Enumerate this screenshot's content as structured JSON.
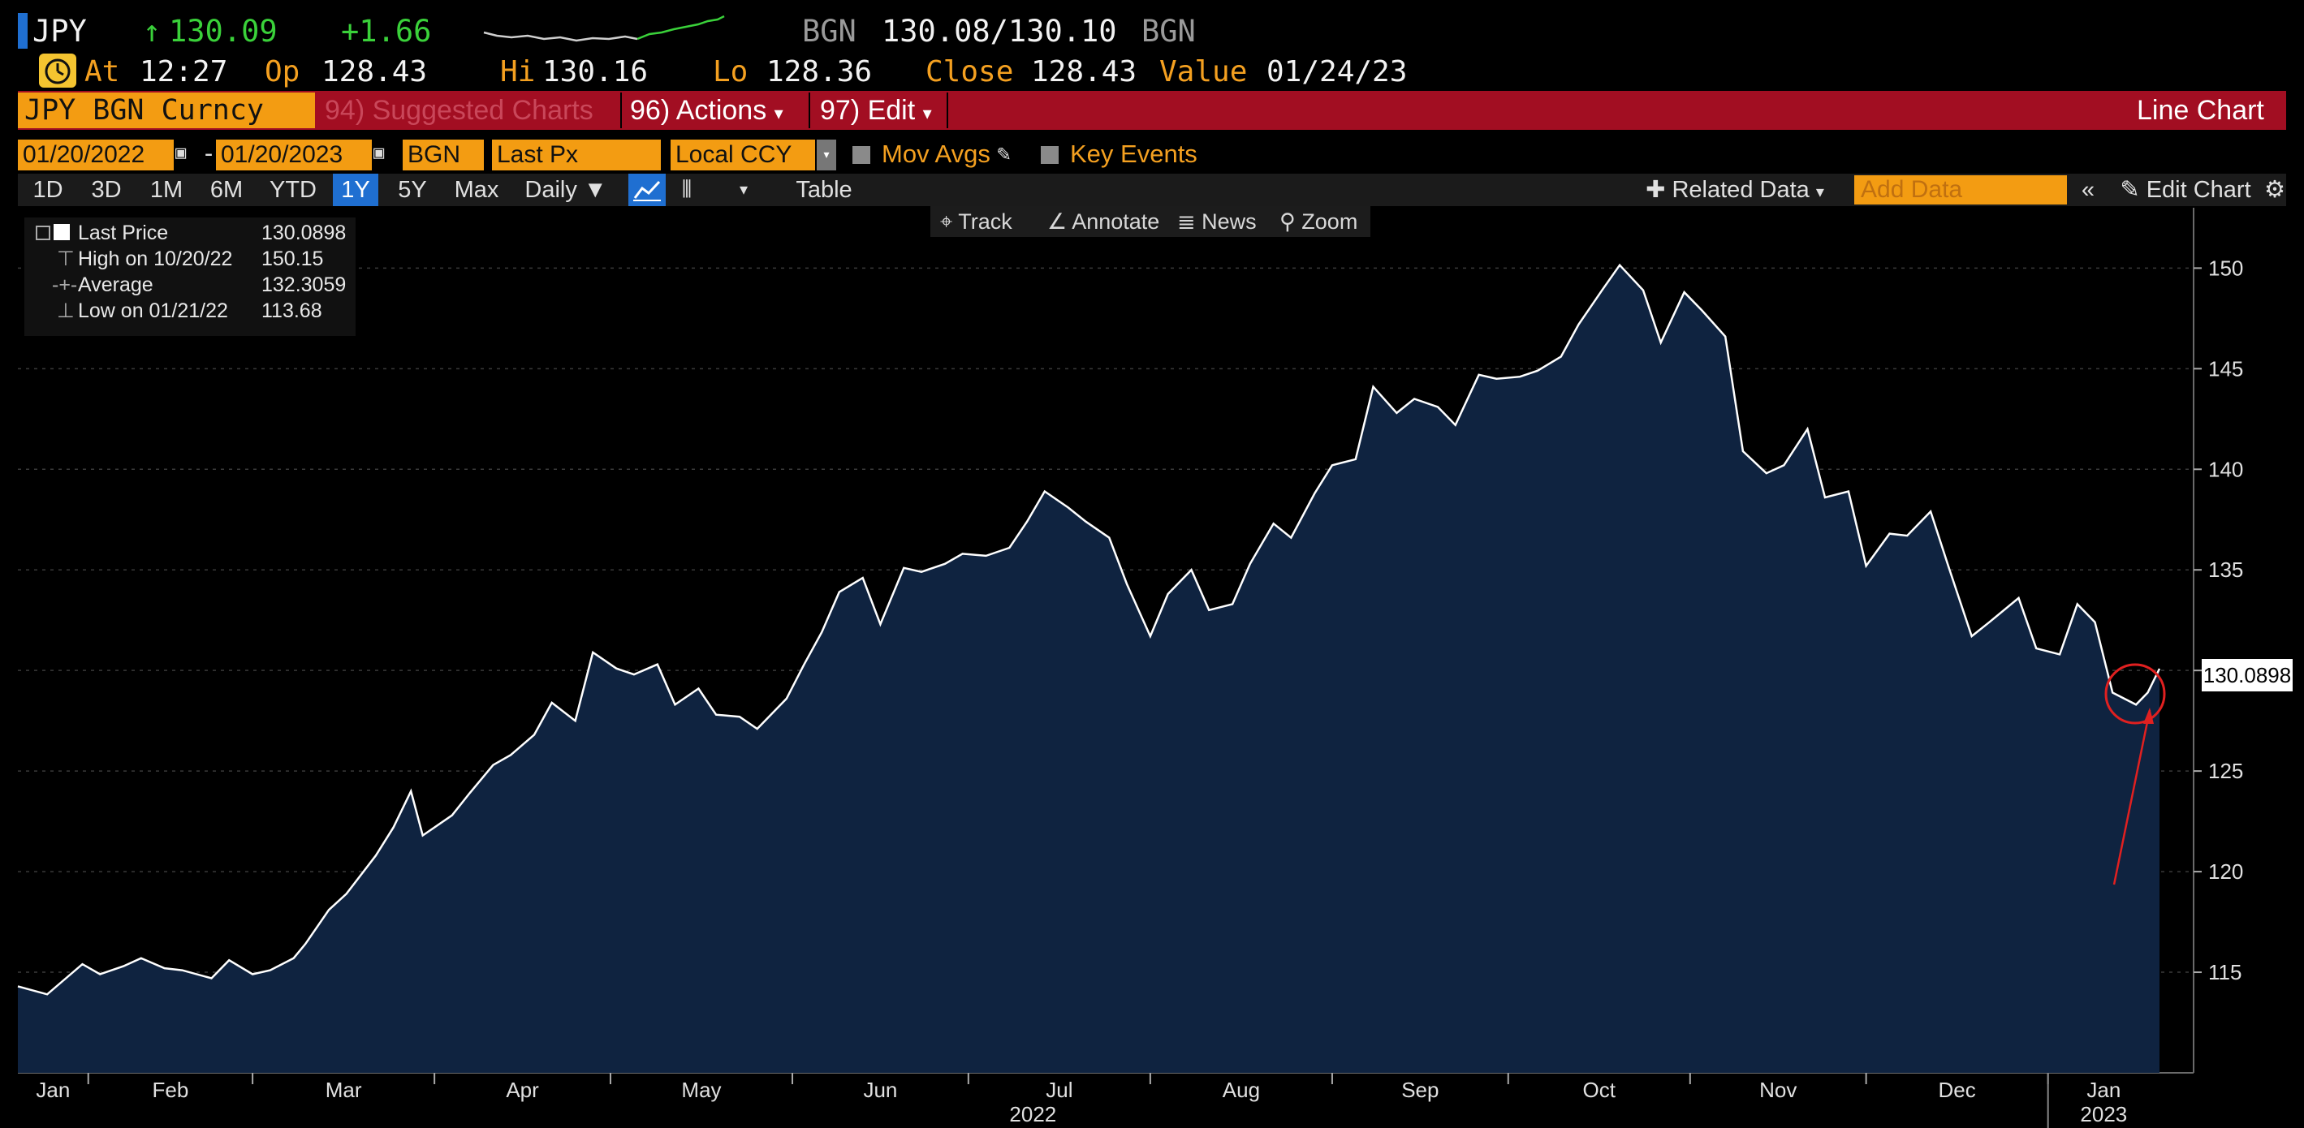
{
  "header": {
    "ticker": "JPY",
    "price": "130.09",
    "change": "+1.66",
    "source_label": "BGN",
    "bid_ask": "130.08/130.10",
    "source_label2": "BGN",
    "at_label": "At",
    "time": "12:27",
    "open_label": "Op",
    "open": "128.43",
    "high_label": "Hi",
    "high": "130.16",
    "low_label": "Lo",
    "low": "128.36",
    "close_label": "Close",
    "close": "128.43",
    "value_label": "Value",
    "value_date": "01/24/23"
  },
  "menubar": {
    "security": "JPY BGN Curncy",
    "suggested": "94) Suggested Charts",
    "actions": "96) Actions",
    "edit": "97) Edit",
    "chart_type": "Line Chart"
  },
  "inputs": {
    "start_date": "01/20/2022",
    "end_date": "01/20/2023",
    "source": "BGN",
    "field": "Last Px",
    "currency": "Local CCY",
    "mov_avgs": "Mov Avgs",
    "key_events": "Key Events"
  },
  "range_buttons": [
    "1D",
    "3D",
    "1M",
    "6M",
    "YTD",
    "1Y",
    "5Y",
    "Max"
  ],
  "active_range": "1Y",
  "periodicity": "Daily",
  "table_label": "Table",
  "related_data": "Related Data",
  "add_data_placeholder": "Add Data",
  "edit_chart": "Edit Chart",
  "chart_tools": [
    "Track",
    "Annotate",
    "News",
    "Zoom"
  ],
  "legend": {
    "last_label": "Last Price",
    "last_value": "130.0898",
    "high_label": "High on 10/20/22",
    "high_value": "150.15",
    "avg_label": "Average",
    "avg_value": "132.3059",
    "low_label": "Low on 01/21/22",
    "low_value": "113.68"
  },
  "colors": {
    "accent": "#f39c12",
    "menubar": "#a20e22",
    "area_fill": "#0f2340",
    "line": "#ffffff",
    "up": "#3ad13a"
  },
  "chart_data": {
    "type": "area",
    "series": [
      {
        "name": "Last Price",
        "points": [
          [
            "2022-01-20",
            114.3
          ],
          [
            "2022-01-25",
            113.9
          ],
          [
            "2022-01-31",
            115.4
          ],
          [
            "2022-02-03",
            114.9
          ],
          [
            "2022-02-07",
            115.3
          ],
          [
            "2022-02-10",
            115.7
          ],
          [
            "2022-02-14",
            115.2
          ],
          [
            "2022-02-17",
            115.1
          ],
          [
            "2022-02-22",
            114.7
          ],
          [
            "2022-02-25",
            115.6
          ],
          [
            "2022-03-01",
            114.9
          ],
          [
            "2022-03-04",
            115.1
          ],
          [
            "2022-03-08",
            115.7
          ],
          [
            "2022-03-10",
            116.4
          ],
          [
            "2022-03-14",
            118.1
          ],
          [
            "2022-03-17",
            118.9
          ],
          [
            "2022-03-22",
            120.8
          ],
          [
            "2022-03-25",
            122.2
          ],
          [
            "2022-03-28",
            124.0
          ],
          [
            "2022-03-30",
            121.8
          ],
          [
            "2022-04-04",
            122.8
          ],
          [
            "2022-04-07",
            123.9
          ],
          [
            "2022-04-11",
            125.3
          ],
          [
            "2022-04-14",
            125.8
          ],
          [
            "2022-04-18",
            126.8
          ],
          [
            "2022-04-21",
            128.4
          ],
          [
            "2022-04-25",
            127.5
          ],
          [
            "2022-04-28",
            130.9
          ],
          [
            "2022-05-02",
            130.1
          ],
          [
            "2022-05-05",
            129.8
          ],
          [
            "2022-05-09",
            130.3
          ],
          [
            "2022-05-12",
            128.3
          ],
          [
            "2022-05-16",
            129.1
          ],
          [
            "2022-05-19",
            127.8
          ],
          [
            "2022-05-23",
            127.7
          ],
          [
            "2022-05-26",
            127.1
          ],
          [
            "2022-05-31",
            128.6
          ],
          [
            "2022-06-03",
            130.3
          ],
          [
            "2022-06-06",
            131.9
          ],
          [
            "2022-06-09",
            133.9
          ],
          [
            "2022-06-13",
            134.6
          ],
          [
            "2022-06-16",
            132.3
          ],
          [
            "2022-06-20",
            135.1
          ],
          [
            "2022-06-23",
            134.9
          ],
          [
            "2022-06-27",
            135.3
          ],
          [
            "2022-06-30",
            135.8
          ],
          [
            "2022-07-04",
            135.7
          ],
          [
            "2022-07-08",
            136.1
          ],
          [
            "2022-07-11",
            137.4
          ],
          [
            "2022-07-14",
            138.9
          ],
          [
            "2022-07-18",
            138.1
          ],
          [
            "2022-07-21",
            137.4
          ],
          [
            "2022-07-25",
            136.6
          ],
          [
            "2022-07-28",
            134.3
          ],
          [
            "2022-08-01",
            131.7
          ],
          [
            "2022-08-04",
            133.8
          ],
          [
            "2022-08-08",
            135.0
          ],
          [
            "2022-08-11",
            133.0
          ],
          [
            "2022-08-15",
            133.3
          ],
          [
            "2022-08-18",
            135.3
          ],
          [
            "2022-08-22",
            137.3
          ],
          [
            "2022-08-25",
            136.6
          ],
          [
            "2022-08-29",
            138.8
          ],
          [
            "2022-09-01",
            140.2
          ],
          [
            "2022-09-05",
            140.5
          ],
          [
            "2022-09-08",
            144.1
          ],
          [
            "2022-09-12",
            142.8
          ],
          [
            "2022-09-15",
            143.5
          ],
          [
            "2022-09-19",
            143.1
          ],
          [
            "2022-09-22",
            142.2
          ],
          [
            "2022-09-26",
            144.7
          ],
          [
            "2022-09-29",
            144.5
          ],
          [
            "2022-10-03",
            144.6
          ],
          [
            "2022-10-06",
            144.9
          ],
          [
            "2022-10-10",
            145.6
          ],
          [
            "2022-10-13",
            147.2
          ],
          [
            "2022-10-17",
            148.9
          ],
          [
            "2022-10-20",
            150.15
          ],
          [
            "2022-10-24",
            148.9
          ],
          [
            "2022-10-27",
            146.3
          ],
          [
            "2022-10-31",
            148.8
          ],
          [
            "2022-11-03",
            147.9
          ],
          [
            "2022-11-07",
            146.6
          ],
          [
            "2022-11-10",
            140.9
          ],
          [
            "2022-11-14",
            139.8
          ],
          [
            "2022-11-17",
            140.2
          ],
          [
            "2022-11-21",
            142.0
          ],
          [
            "2022-11-24",
            138.6
          ],
          [
            "2022-11-28",
            138.9
          ],
          [
            "2022-12-01",
            135.2
          ],
          [
            "2022-12-05",
            136.8
          ],
          [
            "2022-12-08",
            136.7
          ],
          [
            "2022-12-12",
            137.9
          ],
          [
            "2022-12-15",
            135.2
          ],
          [
            "2022-12-19",
            131.7
          ],
          [
            "2022-12-22",
            132.4
          ],
          [
            "2022-12-27",
            133.6
          ],
          [
            "2022-12-30",
            131.1
          ],
          [
            "2023-01-03",
            130.8
          ],
          [
            "2023-01-06",
            133.3
          ],
          [
            "2023-01-09",
            132.4
          ],
          [
            "2023-01-12",
            128.9
          ],
          [
            "2023-01-16",
            128.3
          ],
          [
            "2023-01-18",
            128.9
          ],
          [
            "2023-01-20",
            130.0898
          ]
        ]
      }
    ],
    "x_labels": [
      "Jan",
      "Feb",
      "Mar",
      "Apr",
      "May",
      "Jun",
      "Jul",
      "Aug",
      "Sep",
      "Oct",
      "Nov",
      "Dec",
      "Jan"
    ],
    "year_labels": [
      "2022",
      "2023"
    ],
    "y_ticks": [
      115,
      120,
      125,
      130,
      135,
      140,
      145,
      150
    ],
    "ylim": [
      110,
      153
    ],
    "last_value_label": "130.0898"
  }
}
